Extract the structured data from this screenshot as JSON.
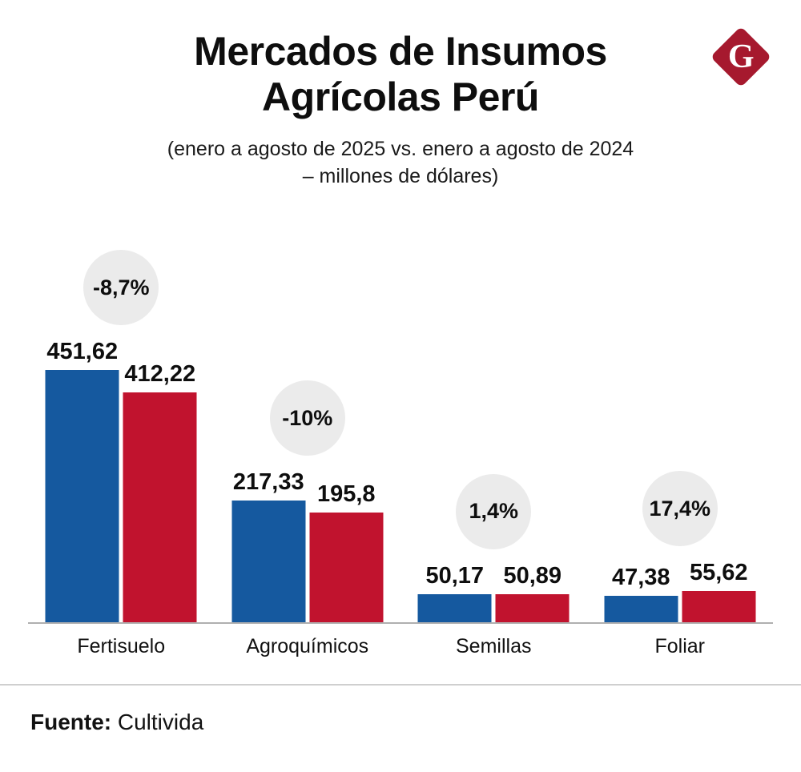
{
  "header": {
    "title": "Mercados de Insumos Agrícolas Perú",
    "subtitle": "(enero a agosto de 2025 vs. enero a agosto de 2024 – millones de dólares)",
    "logo_letter": "G"
  },
  "footer": {
    "source_label": "Fuente:",
    "source_value": "Cultivida"
  },
  "colors": {
    "bar_blue": "#15599f",
    "bar_red": "#c1132e",
    "badge_bg": "#ebebeb",
    "logo_red": "#a6192e"
  },
  "chart_data": {
    "type": "bar",
    "title": "Mercados de Insumos Agrícolas Perú",
    "subtitle": "(enero a agosto de 2025 vs. enero a agosto de 2024 – millones de dólares)",
    "unit": "millones de dólares",
    "categories": [
      "Fertisuelo",
      "Agroquímicos",
      "Semillas",
      "Foliar"
    ],
    "series": [
      {
        "name": "enero a agosto 2024",
        "color": "#15599f",
        "values": [
          451.62,
          217.33,
          50.17,
          47.38
        ],
        "labels": [
          "451,62",
          "217,33",
          "50,17",
          "47,38"
        ]
      },
      {
        "name": "enero a agosto 2025",
        "color": "#c1132e",
        "values": [
          412.22,
          195.8,
          50.89,
          55.62
        ],
        "labels": [
          "412,22",
          "195,8",
          "50,89",
          "55,62"
        ]
      }
    ],
    "change_badges": [
      "-8,7%",
      "-10%",
      "1,4%",
      "17,4%"
    ],
    "ylim": [
      0,
      460
    ],
    "grid": false,
    "legend": "none",
    "source": "Cultivida"
  }
}
